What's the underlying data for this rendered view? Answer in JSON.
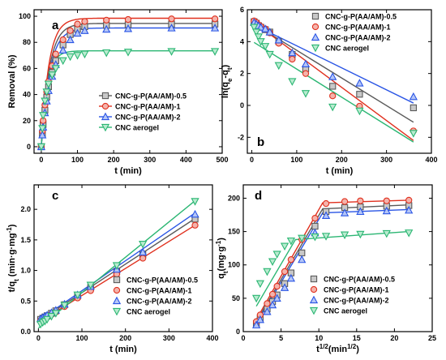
{
  "figure": {
    "width": 550,
    "height": 444
  },
  "series_style": [
    {
      "color": "#5a5a5a",
      "fill": "#c8c8c8",
      "marker": "square"
    },
    {
      "color": "#e0301e",
      "fill": "#f4b3ab",
      "marker": "circle"
    },
    {
      "color": "#2a55e5",
      "fill": "#b5c6f7",
      "marker": "triangle-up"
    },
    {
      "color": "#2bb673",
      "fill": "#b8ebcf",
      "marker": "triangle-down"
    }
  ],
  "chart_data": [
    {
      "panel": "a",
      "type": "line",
      "xlabel": "t (min)",
      "ylabel": "Removal (%)",
      "xlim": [
        -20,
        500
      ],
      "ylim": [
        -5,
        105
      ],
      "xticks": [
        0,
        100,
        200,
        300,
        400,
        500
      ],
      "yticks": [
        0,
        20,
        40,
        60,
        80,
        100
      ],
      "legend_position": "center-right",
      "x": [
        0,
        3,
        5,
        10,
        15,
        20,
        30,
        40,
        60,
        80,
        100,
        120,
        180,
        240,
        360,
        480
      ],
      "series": [
        {
          "name": "CNC-g-P(AA/AM)-0.5",
          "values": [
            0,
            10,
            17,
            28,
            38,
            46,
            57,
            66,
            78,
            86,
            90,
            92,
            93,
            93.5,
            94,
            94
          ]
        },
        {
          "name": "CNC-g-P(AA/AM)-1",
          "values": [
            0,
            12,
            20,
            32,
            42,
            50,
            62,
            71,
            82,
            89,
            94,
            96,
            97,
            97.5,
            98,
            98
          ]
        },
        {
          "name": "CNC-g-P(AA/AM)-2",
          "values": [
            0,
            9,
            15,
            26,
            35,
            43,
            54,
            63,
            74,
            82,
            87,
            89,
            90,
            90.5,
            91,
            91
          ]
        },
        {
          "name": "CNC aerogel",
          "values": [
            0,
            14,
            24,
            35,
            42,
            48,
            55,
            60,
            66,
            69,
            70,
            71,
            72,
            72.5,
            73,
            73
          ]
        }
      ],
      "fit_curves": [
        {
          "series": 0,
          "qe": 94.5,
          "k": 0.045
        },
        {
          "series": 1,
          "qe": 98.5,
          "k": 0.048
        },
        {
          "series": 2,
          "qe": 91.0,
          "k": 0.043
        },
        {
          "series": 3,
          "qe": 73.5,
          "k": 0.06
        }
      ]
    },
    {
      "panel": "b",
      "type": "scatter",
      "xlabel": "t (min)",
      "ylabel": "ln(qe-qt)",
      "xlim": [
        -10,
        400
      ],
      "ylim": [
        -3,
        6
      ],
      "xticks": [
        0,
        100,
        200,
        300,
        400
      ],
      "yticks": [
        -2,
        0,
        2,
        4,
        6
      ],
      "legend_position": "top-right",
      "x": [
        5,
        10,
        15,
        20,
        30,
        40,
        60,
        90,
        120,
        180,
        240,
        360
      ],
      "series": [
        {
          "name": "CNC-g-P(AA/AM)-0.5",
          "values": [
            5.25,
            5.15,
            5.0,
            4.9,
            4.75,
            4.6,
            4.0,
            3.2,
            2.3,
            1.2,
            0.7,
            -0.15
          ]
        },
        {
          "name": "CNC-g-P(AA/AM)-1",
          "values": [
            5.3,
            5.2,
            5.05,
            4.95,
            4.8,
            4.55,
            3.9,
            2.9,
            2.0,
            0.6,
            -0.05,
            -1.6
          ]
        },
        {
          "name": "CNC-g-P(AA/AM)-2",
          "values": [
            5.2,
            5.1,
            5.0,
            4.9,
            4.8,
            4.6,
            4.1,
            3.3,
            2.6,
            1.8,
            1.4,
            0.55
          ]
        },
        {
          "name": "CNC aerogel",
          "values": [
            4.9,
            4.6,
            4.3,
            4.0,
            3.7,
            3.2,
            2.5,
            1.5,
            0.75,
            -0.1,
            -0.35,
            -1.75
          ]
        }
      ],
      "fit_lines": [
        {
          "series": 0,
          "x": [
            5,
            360
          ],
          "y": [
            5.1,
            -1.05
          ]
        },
        {
          "series": 1,
          "x": [
            5,
            360
          ],
          "y": [
            5.2,
            -2.2
          ]
        },
        {
          "series": 2,
          "x": [
            5,
            360
          ],
          "y": [
            5.05,
            0.15
          ]
        },
        {
          "series": 3,
          "x": [
            5,
            360
          ],
          "y": [
            3.95,
            -2.3
          ]
        }
      ]
    },
    {
      "panel": "c",
      "type": "scatter",
      "xlabel": "t (min)",
      "ylabel": "t/qt (min·g·mg⁻¹)",
      "xlim": [
        -10,
        400
      ],
      "ylim": [
        0,
        2.4
      ],
      "xticks": [
        0,
        100,
        200,
        300,
        400
      ],
      "yticks": [
        0.0,
        0.5,
        1.0,
        1.5,
        2.0
      ],
      "legend_position": "center-right",
      "x": [
        5,
        10,
        15,
        20,
        30,
        40,
        60,
        90,
        120,
        180,
        240,
        360
      ],
      "series": [
        {
          "name": "CNC-g-P(AA/AM)-0.5",
          "values": [
            0.2,
            0.22,
            0.24,
            0.26,
            0.3,
            0.34,
            0.44,
            0.58,
            0.72,
            0.98,
            1.26,
            1.84
          ]
        },
        {
          "name": "CNC-g-P(AA/AM)-1",
          "values": [
            0.18,
            0.2,
            0.22,
            0.24,
            0.28,
            0.32,
            0.41,
            0.55,
            0.67,
            0.94,
            1.2,
            1.74
          ]
        },
        {
          "name": "CNC-g-P(AA/AM)-2",
          "values": [
            0.21,
            0.23,
            0.25,
            0.27,
            0.31,
            0.35,
            0.45,
            0.6,
            0.74,
            1.02,
            1.3,
            1.92
          ]
        },
        {
          "name": "CNC aerogel",
          "values": [
            0.12,
            0.15,
            0.17,
            0.2,
            0.25,
            0.3,
            0.43,
            0.6,
            0.76,
            1.08,
            1.43,
            2.13
          ]
        }
      ],
      "fit_lines": [
        {
          "series": 0,
          "x": [
            0,
            360
          ],
          "y": [
            0.17,
            1.85
          ]
        },
        {
          "series": 1,
          "x": [
            0,
            360
          ],
          "y": [
            0.15,
            1.74
          ]
        },
        {
          "series": 2,
          "x": [
            0,
            360
          ],
          "y": [
            0.18,
            1.94
          ]
        },
        {
          "series": 3,
          "x": [
            0,
            360
          ],
          "y": [
            0.06,
            2.14
          ]
        }
      ]
    },
    {
      "panel": "d",
      "type": "scatter",
      "xlabel": "t1/2(min1/2)",
      "ylabel": "qt(mg·g⁻¹)",
      "xlim": [
        0,
        25
      ],
      "ylim": [
        0,
        220
      ],
      "xticks": [
        0,
        5,
        10,
        15,
        20,
        25
      ],
      "yticks": [
        0,
        50,
        100,
        150,
        200
      ],
      "legend_position": "bottom-right",
      "x": [
        1.73,
        2.24,
        3.16,
        3.87,
        4.47,
        5.48,
        6.32,
        7.75,
        9.49,
        10.95,
        13.42,
        15.49,
        18.97,
        21.91
      ],
      "series": [
        {
          "name": "CNC-g-P(AA/AM)-0.5",
          "values": [
            12,
            20,
            34,
            45,
            55,
            72,
            88,
            118,
            158,
            180,
            186,
            187,
            188,
            189
          ]
        },
        {
          "name": "CNC-g-P(AA/AM)-1",
          "values": [
            15,
            25,
            42,
            56,
            68,
            90,
            108,
            138,
            170,
            192,
            195,
            196,
            196,
            197
          ]
        },
        {
          "name": "CNC-g-P(AA/AM)-2",
          "values": [
            10,
            18,
            30,
            40,
            50,
            66,
            80,
            108,
            148,
            174,
            178,
            180,
            181,
            182
          ]
        },
        {
          "name": "CNC aerogel",
          "values": [
            50,
            72,
            90,
            105,
            116,
            128,
            136,
            140,
            142,
            143,
            145,
            146,
            147,
            148
          ]
        }
      ],
      "fit_lines": [
        {
          "series": 0,
          "x": [
            1.73,
            10.5,
            21.9
          ],
          "y": [
            15,
            184,
            190
          ]
        },
        {
          "series": 1,
          "x": [
            1.73,
            10.5,
            21.9
          ],
          "y": [
            18,
            193,
            197
          ]
        },
        {
          "series": 2,
          "x": [
            1.73,
            10.5,
            21.9
          ],
          "y": [
            12,
            178,
            183
          ]
        },
        {
          "series": 3,
          "x": [
            1.73,
            6.9,
            21.9
          ],
          "y": [
            38,
            138,
            150
          ]
        }
      ]
    }
  ]
}
